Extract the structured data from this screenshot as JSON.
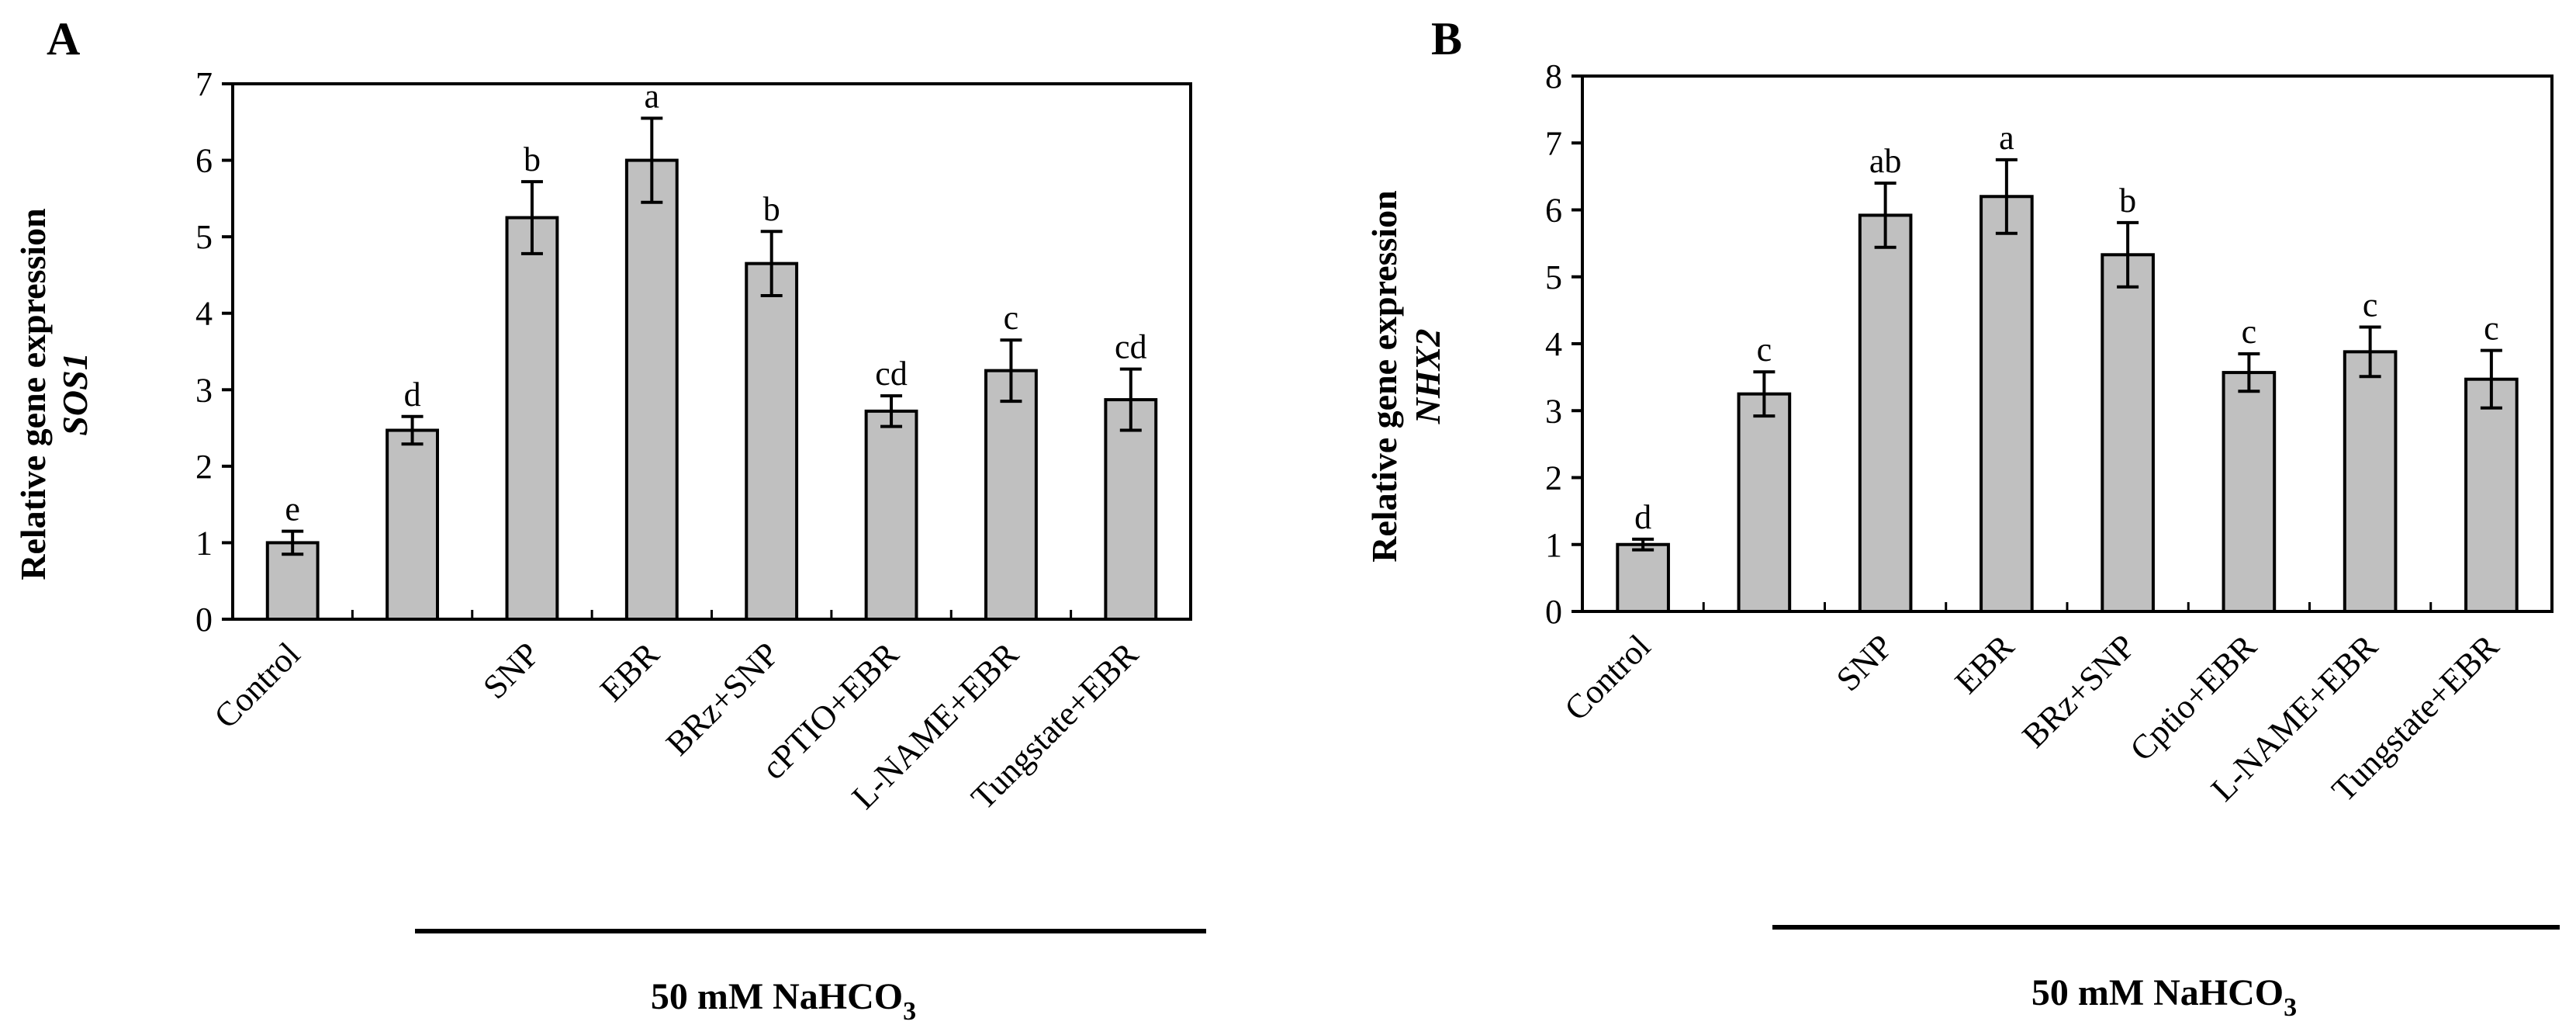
{
  "chart_data": [
    {
      "type": "bar",
      "panel": "A",
      "ylabel": "Relative gene expression",
      "ylabel_gene": "SOS1",
      "ylim": [
        0,
        7
      ],
      "yticks": [
        "0",
        "1",
        "2",
        "3",
        "4",
        "5",
        "6",
        "7"
      ],
      "categories": [
        "Control",
        "",
        "SNP",
        "EBR",
        "BRz+SNP",
        "cPTIO+EBR",
        "L-NAME+EBR",
        "Tungstate+EBR"
      ],
      "values": [
        1.0,
        2.47,
        5.25,
        6.0,
        4.65,
        2.72,
        3.25,
        2.87
      ],
      "errors": [
        0.15,
        0.18,
        0.47,
        0.55,
        0.42,
        0.2,
        0.4,
        0.4
      ],
      "significance": [
        "e",
        "d",
        "b",
        "a",
        "b",
        "cd",
        "c",
        "cd"
      ],
      "treatment_label": "50 mM NaHCO",
      "treatment_subscript": "3",
      "bar_color": "#c0c0c0"
    },
    {
      "type": "bar",
      "panel": "B",
      "ylabel": "Relative gene expression",
      "ylabel_gene": "NHX2",
      "ylim": [
        0,
        8
      ],
      "yticks": [
        "0",
        "1",
        "2",
        "3",
        "4",
        "5",
        "6",
        "7",
        "8"
      ],
      "categories": [
        "Control",
        "",
        "SNP",
        "EBR",
        "BRz+SNP",
        "Cptio+EBR",
        "L-NAME+EBR",
        "Tungstate+EBR"
      ],
      "values": [
        1.0,
        3.25,
        5.92,
        6.2,
        5.33,
        3.57,
        3.88,
        3.47
      ],
      "errors": [
        0.08,
        0.33,
        0.48,
        0.55,
        0.48,
        0.28,
        0.37,
        0.43
      ],
      "significance": [
        "d",
        "c",
        "ab",
        "a",
        "b",
        "c",
        "c",
        "c"
      ],
      "treatment_label": "50 mM NaHCO",
      "treatment_subscript": "3",
      "bar_color": "#c0c0c0"
    }
  ]
}
